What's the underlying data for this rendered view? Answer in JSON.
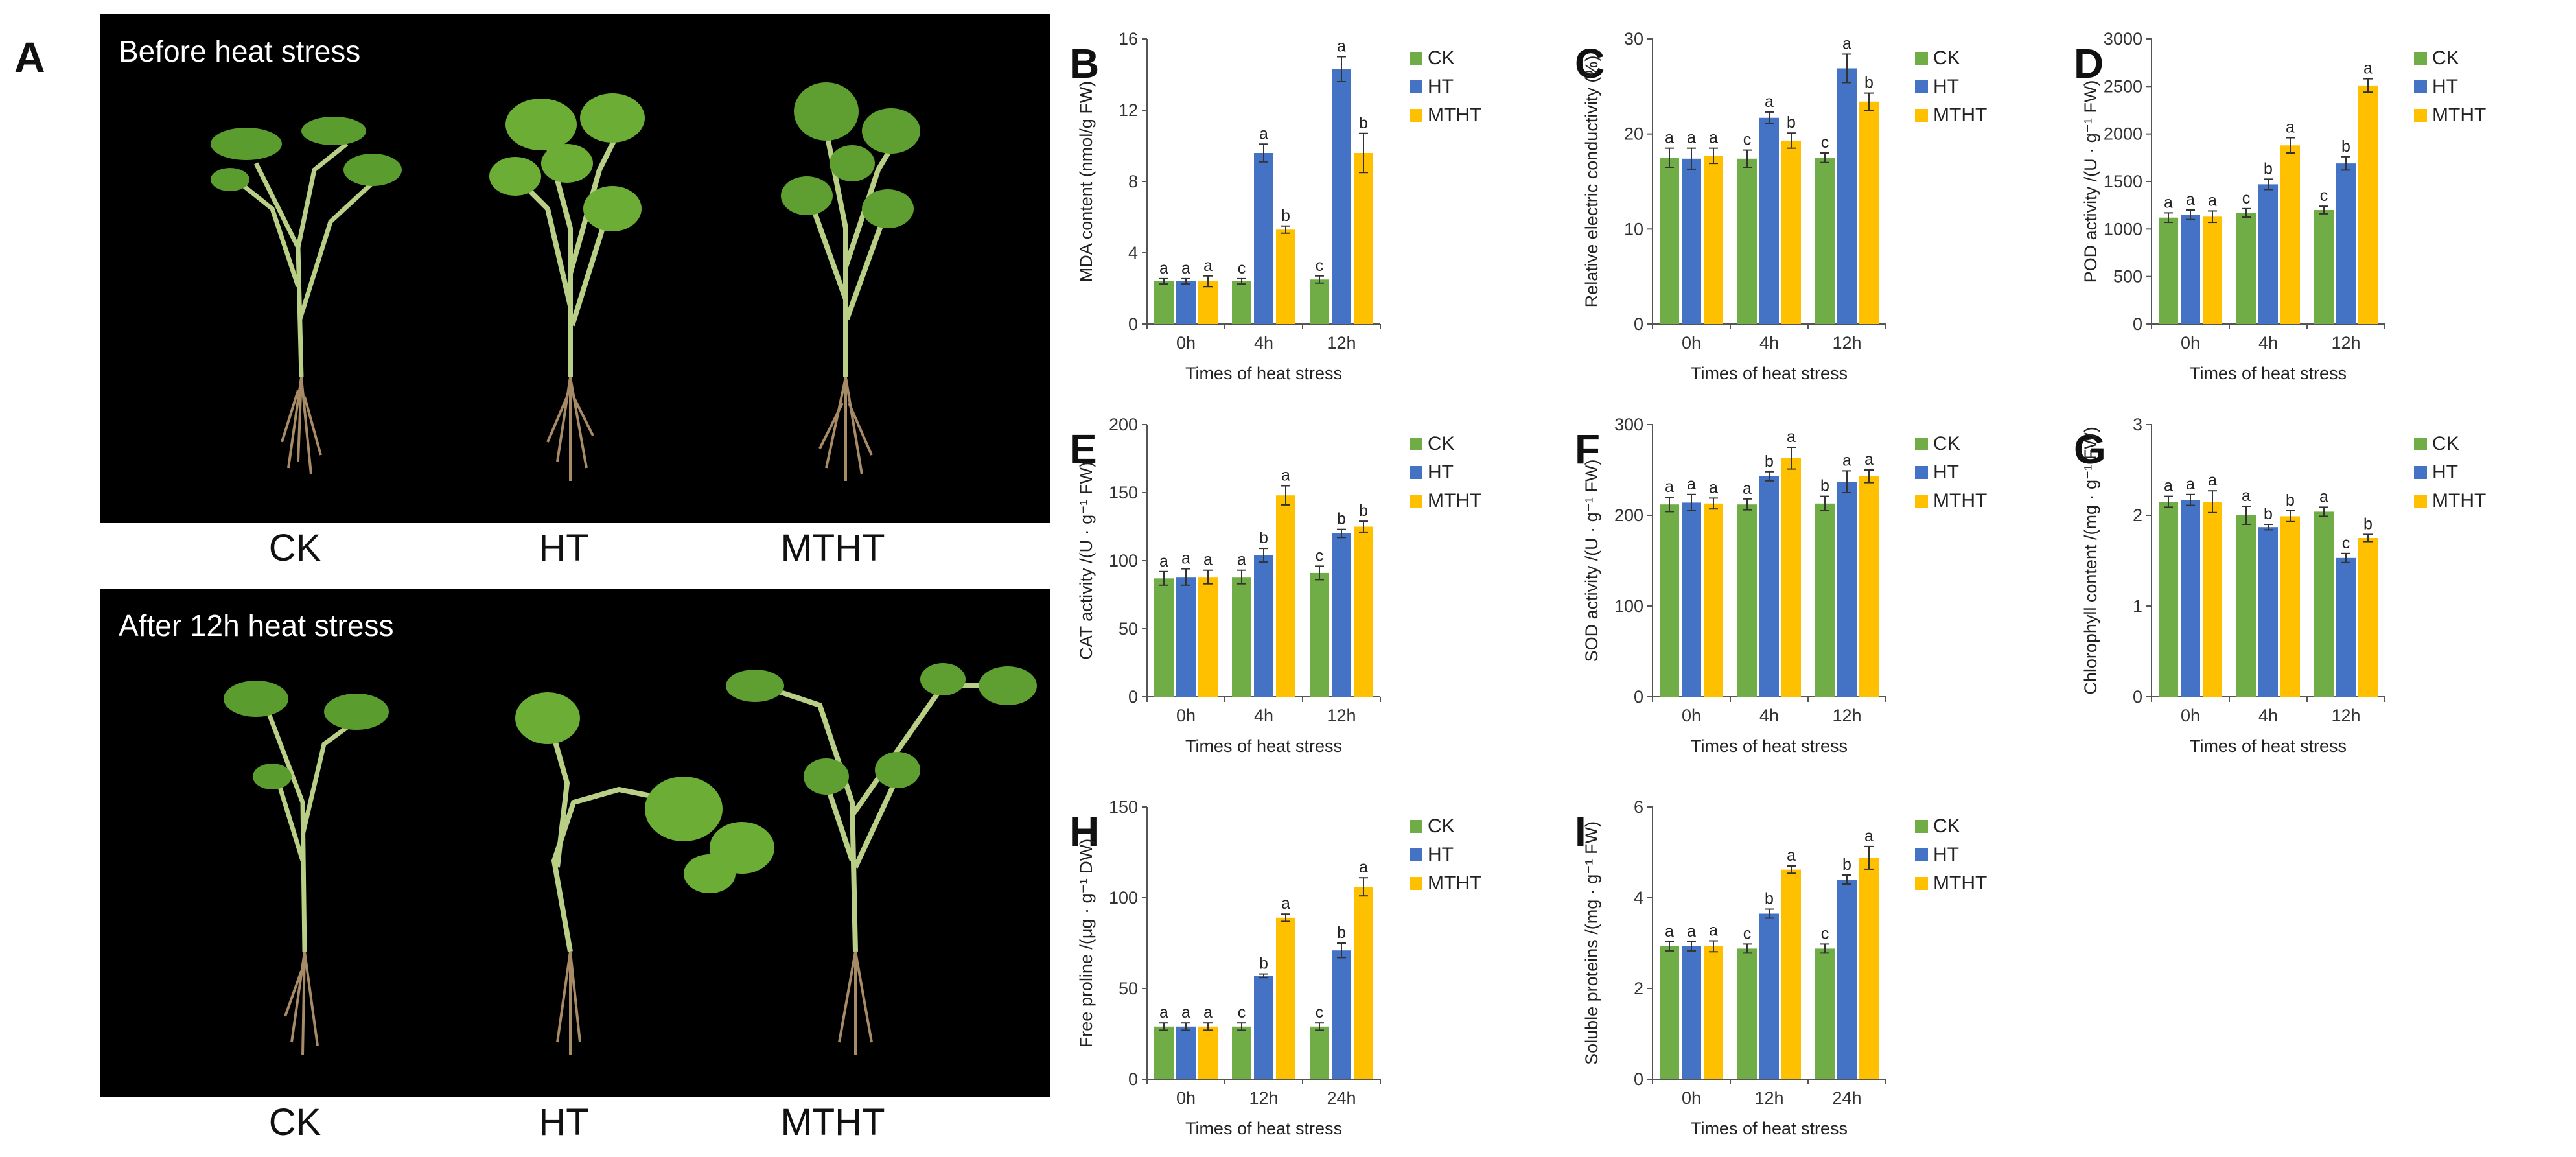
{
  "panel_a": {
    "label": "A",
    "top_title": "Before heat stress",
    "bottom_title": "After 12h heat stress",
    "groups": [
      "CK",
      "HT",
      "MTHT"
    ]
  },
  "colors": {
    "CK": "#70ad47",
    "HT": "#4472c4",
    "MTHT": "#ffc000"
  },
  "chart_data": [
    {
      "label": "B",
      "type": "bar",
      "categories": [
        "0h",
        "4h",
        "12h"
      ],
      "xlabel": "Times of heat stress",
      "ylabel": "MDA content (nmol/g FW)",
      "ylim": [
        0,
        16
      ],
      "yticks": [
        0,
        4,
        8,
        12,
        16
      ],
      "series": [
        {
          "name": "CK",
          "values": [
            2.4,
            2.4,
            2.5
          ],
          "errors": [
            0.15,
            0.15,
            0.2
          ],
          "letters": [
            "a",
            "c",
            "c"
          ]
        },
        {
          "name": "HT",
          "values": [
            2.4,
            9.6,
            14.3
          ],
          "errors": [
            0.15,
            0.5,
            0.7
          ],
          "letters": [
            "a",
            "a",
            "a"
          ]
        },
        {
          "name": "MTHT",
          "values": [
            2.4,
            5.3,
            9.6
          ],
          "errors": [
            0.3,
            0.2,
            1.1
          ],
          "letters": [
            "a",
            "b",
            "b"
          ]
        }
      ]
    },
    {
      "label": "C",
      "type": "bar",
      "categories": [
        "0h",
        "4h",
        "12h"
      ],
      "xlabel": "",
      "ylabel": "Relative electric conductivity (%)",
      "ylim": [
        0,
        30
      ],
      "yticks": [
        0,
        10,
        20,
        30
      ],
      "series": [
        {
          "name": "CK",
          "values": [
            17.5,
            17.4,
            17.5
          ],
          "errors": [
            1.0,
            0.9,
            0.5
          ],
          "letters": [
            "a",
            "c",
            "c"
          ]
        },
        {
          "name": "HT",
          "values": [
            17.4,
            21.7,
            26.9
          ],
          "errors": [
            1.1,
            0.6,
            1.5
          ],
          "letters": [
            "a",
            "a",
            "a"
          ]
        },
        {
          "name": "MTHT",
          "values": [
            17.7,
            19.3,
            23.4
          ],
          "errors": [
            0.8,
            0.8,
            0.9
          ],
          "letters": [
            "a",
            "b",
            "b"
          ]
        }
      ]
    },
    {
      "label": "D",
      "type": "bar",
      "categories": [
        "0h",
        "4h",
        "12h"
      ],
      "xlabel": "Times of heat stress",
      "ylabel": "POD activity /(U · g⁻¹ FW)",
      "ylim": [
        0,
        3000
      ],
      "yticks": [
        0,
        500,
        1000,
        1500,
        2000,
        2500,
        3000
      ],
      "series": [
        {
          "name": "CK",
          "values": [
            1120,
            1170,
            1200
          ],
          "errors": [
            50,
            45,
            40
          ],
          "letters": [
            "a",
            "c",
            "c"
          ]
        },
        {
          "name": "HT",
          "values": [
            1150,
            1470,
            1690
          ],
          "errors": [
            50,
            55,
            70
          ],
          "letters": [
            "a",
            "b",
            "b"
          ]
        },
        {
          "name": "MTHT",
          "values": [
            1130,
            1880,
            2510
          ],
          "errors": [
            60,
            80,
            70
          ],
          "letters": [
            "a",
            "a",
            "a"
          ]
        }
      ]
    },
    {
      "label": "E",
      "type": "bar",
      "categories": [
        "0h",
        "4h",
        "12h"
      ],
      "xlabel": "Times of heat stress",
      "ylabel": "CAT activity /(U · g⁻¹ FW)",
      "ylim": [
        0,
        200
      ],
      "yticks": [
        0,
        50,
        100,
        150,
        200
      ],
      "series": [
        {
          "name": "CK",
          "values": [
            87,
            88,
            91
          ],
          "errors": [
            5,
            5,
            5
          ],
          "letters": [
            "a",
            "a",
            "c"
          ]
        },
        {
          "name": "HT",
          "values": [
            88,
            104,
            120
          ],
          "errors": [
            6,
            5,
            3
          ],
          "letters": [
            "a",
            "b",
            "b"
          ]
        },
        {
          "name": "MTHT",
          "values": [
            88,
            148,
            125
          ],
          "errors": [
            5,
            7,
            4
          ],
          "letters": [
            "a",
            "a",
            "b"
          ]
        }
      ]
    },
    {
      "label": "F",
      "type": "bar",
      "categories": [
        "0h",
        "4h",
        "12h"
      ],
      "xlabel": "Times of heat stress",
      "ylabel": "SOD activity /(U · g⁻¹ FW)",
      "ylim": [
        0,
        300
      ],
      "yticks": [
        0,
        100,
        200,
        300
      ],
      "series": [
        {
          "name": "CK",
          "values": [
            212,
            212,
            213
          ],
          "errors": [
            8,
            6,
            8
          ],
          "letters": [
            "a",
            "a",
            "b"
          ]
        },
        {
          "name": "HT",
          "values": [
            214,
            243,
            237
          ],
          "errors": [
            9,
            5,
            12
          ],
          "letters": [
            "a",
            "b",
            "a"
          ]
        },
        {
          "name": "MTHT",
          "values": [
            213,
            263,
            243
          ],
          "errors": [
            6,
            12,
            7
          ],
          "letters": [
            "a",
            "a",
            "a"
          ]
        }
      ]
    },
    {
      "label": "G",
      "type": "bar",
      "categories": [
        "0h",
        "4h",
        "12h"
      ],
      "xlabel": "Times of heat stress",
      "ylabel": "Chlorophyll content /(mg · g⁻¹ FW)",
      "ylim": [
        0,
        3
      ],
      "yticks": [
        0,
        1,
        2,
        3
      ],
      "series": [
        {
          "name": "CK",
          "values": [
            2.15,
            2.0,
            2.04
          ],
          "errors": [
            0.06,
            0.1,
            0.05
          ],
          "letters": [
            "a",
            "a",
            "a"
          ]
        },
        {
          "name": "HT",
          "values": [
            2.17,
            1.87,
            1.53
          ],
          "errors": [
            0.06,
            0.03,
            0.05
          ],
          "letters": [
            "a",
            "b",
            "c"
          ]
        },
        {
          "name": "MTHT",
          "values": [
            2.15,
            1.99,
            1.75
          ],
          "errors": [
            0.12,
            0.06,
            0.04
          ],
          "letters": [
            "a",
            "b",
            "b"
          ]
        }
      ]
    },
    {
      "label": "H",
      "type": "bar",
      "categories": [
        "0h",
        "12h",
        "24h"
      ],
      "xlabel": "Times of heat stress",
      "ylabel": "Free proline /(μg · g⁻¹ DW)",
      "ylim": [
        0,
        150
      ],
      "yticks": [
        0,
        50,
        100,
        150
      ],
      "series": [
        {
          "name": "CK",
          "values": [
            29,
            29,
            29
          ],
          "errors": [
            2,
            2,
            2
          ],
          "letters": [
            "a",
            "c",
            "c"
          ]
        },
        {
          "name": "HT",
          "values": [
            29,
            57,
            71
          ],
          "errors": [
            2,
            1,
            4
          ],
          "letters": [
            "a",
            "b",
            "b"
          ]
        },
        {
          "name": "MTHT",
          "values": [
            29,
            89,
            106
          ],
          "errors": [
            2,
            2,
            5
          ],
          "letters": [
            "a",
            "a",
            "a"
          ]
        }
      ]
    },
    {
      "label": "I",
      "type": "bar",
      "categories": [
        "0h",
        "12h",
        "24h"
      ],
      "xlabel": "Times of heat stress",
      "ylabel": "Soluble proteins /(mg · g⁻¹ FW)",
      "ylim": [
        0,
        6
      ],
      "yticks": [
        0,
        2,
        4,
        6
      ],
      "series": [
        {
          "name": "CK",
          "values": [
            2.93,
            2.88,
            2.88
          ],
          "errors": [
            0.1,
            0.1,
            0.1
          ],
          "letters": [
            "a",
            "c",
            "c"
          ]
        },
        {
          "name": "HT",
          "values": [
            2.93,
            3.65,
            4.4
          ],
          "errors": [
            0.1,
            0.1,
            0.1
          ],
          "letters": [
            "a",
            "b",
            "b"
          ]
        },
        {
          "name": "MTHT",
          "values": [
            2.93,
            4.62,
            4.88
          ],
          "errors": [
            0.12,
            0.08,
            0.25
          ],
          "letters": [
            "a",
            "a",
            "a"
          ]
        }
      ]
    }
  ]
}
